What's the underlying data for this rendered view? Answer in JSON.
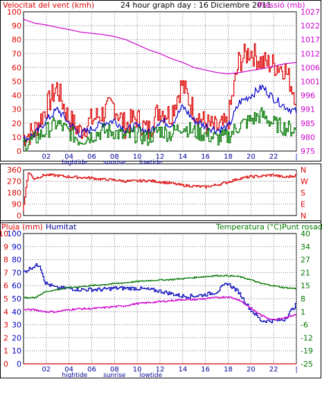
{
  "header": {
    "left_title": "Velocitat del vent (kmh)",
    "center_title": "24 hour graph day : 16 Diciembre 2011",
    "right_title": "Pressió (mb)"
  },
  "colors": {
    "wind": "#dd0000",
    "gust": "#0000cc",
    "avg": "#007700",
    "pressure": "#cc00cc",
    "humidity": "#0000bb",
    "temperature": "#007700",
    "dewpoint": "#cc00cc",
    "rain": "#dd0000",
    "axis_blue": "#000099"
  },
  "x_ticks": [
    "02",
    "04",
    "06",
    "08",
    "10",
    "12",
    "14",
    "16",
    "18",
    "20",
    "22",
    "|"
  ],
  "x_annotations": {
    "hightide": "hightide",
    "sunrise": "sunrise",
    "lowtide": "lowtide"
  },
  "chart_data": [
    {
      "type": "line",
      "title": "24 hour graph day : 16 Diciembre 2011",
      "left_axis": {
        "label": "Velocitat del vent (kmh)",
        "ticks": [
          0,
          10,
          20,
          30,
          40,
          50,
          60,
          70,
          80,
          90,
          100
        ],
        "range": [
          0,
          100
        ]
      },
      "right_axis": {
        "label": "Pressió (mb)",
        "ticks": [
          975,
          980,
          985,
          991,
          996,
          1001,
          1006,
          1012,
          1017,
          1022,
          1027
        ],
        "range": [
          975,
          1030
        ]
      },
      "x": {
        "range": [
          0,
          24
        ],
        "ticks": [
          2,
          4,
          6,
          8,
          10,
          12,
          14,
          16,
          18,
          20,
          22,
          24
        ],
        "tick_labels": [
          "02",
          "04",
          "06",
          "08",
          "10",
          "12",
          "14",
          "16",
          "18",
          "20",
          "22",
          "|"
        ]
      },
      "series": [
        {
          "role": "wind_gust",
          "axis": "left",
          "x": [
            0,
            1,
            2,
            3,
            4,
            5,
            6,
            7,
            8,
            9,
            10,
            11,
            12,
            13,
            14,
            15,
            16,
            17,
            18,
            19,
            20,
            21,
            22,
            23,
            24
          ],
          "values": [
            10,
            14,
            30,
            46,
            24,
            14,
            22,
            27,
            33,
            18,
            24,
            14,
            30,
            26,
            48,
            30,
            20,
            16,
            19,
            64,
            72,
            64,
            62,
            60,
            40
          ]
        },
        {
          "role": "wind_speed",
          "axis": "left",
          "x": [
            0,
            1,
            2,
            3,
            4,
            5,
            6,
            7,
            8,
            9,
            10,
            11,
            12,
            13,
            14,
            15,
            16,
            17,
            18,
            19,
            20,
            21,
            22,
            23,
            24
          ],
          "values": [
            8,
            12,
            22,
            30,
            20,
            12,
            16,
            20,
            22,
            15,
            18,
            13,
            22,
            19,
            32,
            22,
            18,
            15,
            17,
            35,
            40,
            46,
            38,
            32,
            28
          ]
        },
        {
          "role": "wind_avg",
          "axis": "left",
          "x": [
            0,
            1,
            2,
            3,
            4,
            5,
            6,
            7,
            8,
            9,
            10,
            11,
            12,
            13,
            14,
            15,
            16,
            17,
            18,
            19,
            20,
            21,
            22,
            23,
            24
          ],
          "values": [
            5,
            8,
            14,
            20,
            14,
            8,
            11,
            14,
            14,
            10,
            12,
            9,
            15,
            12,
            18,
            14,
            12,
            9,
            10,
            18,
            22,
            26,
            20,
            17,
            15
          ]
        },
        {
          "role": "pressure",
          "axis": "right",
          "x": [
            0,
            1,
            2,
            3,
            4,
            5,
            6,
            7,
            8,
            9,
            10,
            11,
            12,
            13,
            14,
            15,
            16,
            17,
            18,
            19,
            20,
            21,
            22,
            23,
            24
          ],
          "values": [
            1027,
            1025.5,
            1024.8,
            1023.8,
            1023,
            1022,
            1021.5,
            1021,
            1020.2,
            1019,
            1017,
            1015,
            1013.5,
            1011.5,
            1010,
            1008,
            1007,
            1006,
            1005.5,
            1006,
            1006.8,
            1007.5,
            1008.5,
            1009.5,
            1010
          ]
        }
      ]
    },
    {
      "type": "line",
      "left_axis": {
        "ticks": [
          0,
          90,
          180,
          270,
          360
        ],
        "range": [
          0,
          360
        ]
      },
      "right_axis": {
        "ticks": [
          "N",
          "W",
          "S",
          "E",
          "N"
        ]
      },
      "x": {
        "range": [
          0,
          24
        ]
      },
      "series": [
        {
          "role": "wind_direction",
          "axis": "left",
          "x": [
            0,
            0.5,
            1,
            2,
            3,
            4,
            5,
            6,
            7,
            8,
            9,
            10,
            11,
            12,
            13,
            14,
            15,
            16,
            17,
            18,
            19,
            20,
            21,
            22,
            23,
            24
          ],
          "values": [
            30,
            340,
            290,
            320,
            315,
            305,
            300,
            295,
            285,
            280,
            270,
            272,
            275,
            265,
            255,
            238,
            232,
            225,
            240,
            262,
            290,
            305,
            310,
            320,
            300,
            315
          ]
        }
      ]
    },
    {
      "type": "line",
      "left_axis": {
        "label": "Pluja (mm)",
        "ticks": [
          0,
          1,
          2,
          3,
          4,
          5,
          6,
          7,
          8,
          9,
          10
        ],
        "range": [
          0,
          10
        ]
      },
      "left_axis_2": {
        "label": "Humitat",
        "ticks": [
          0,
          10,
          20,
          30,
          40,
          50,
          60,
          70,
          80,
          90,
          100
        ],
        "range": [
          0,
          100
        ]
      },
      "right_axis": {
        "label": "Temperatura (°C)Punt rosada",
        "ticks": [
          -25,
          -19,
          -12,
          -6,
          1,
          8,
          15,
          21,
          27,
          34,
          40
        ],
        "range": [
          -25,
          40
        ]
      },
      "x": {
        "range": [
          0,
          24
        ]
      },
      "series": [
        {
          "role": "humidity",
          "axis": "left_2",
          "x": [
            0,
            1,
            1.5,
            2,
            3,
            4,
            5,
            6,
            7,
            8,
            9,
            10,
            11,
            12,
            13,
            14,
            15,
            16,
            17,
            18,
            19,
            20,
            21,
            22,
            23,
            24
          ],
          "values": [
            70,
            75,
            76,
            62,
            58,
            58,
            57,
            57,
            57,
            58,
            58,
            58,
            57,
            56,
            54,
            52,
            52,
            53,
            55,
            62,
            55,
            42,
            33,
            33,
            34,
            45
          ]
        },
        {
          "role": "temperature",
          "axis": "right",
          "x": [
            0,
            1,
            2,
            3,
            4,
            5,
            6,
            7,
            8,
            9,
            10,
            11,
            12,
            13,
            14,
            15,
            16,
            17,
            18,
            19,
            20,
            21,
            22,
            23,
            24
          ],
          "values": [
            8,
            8,
            11,
            12,
            13,
            13.5,
            14,
            14.5,
            15,
            15.5,
            16,
            16.5,
            16.8,
            17,
            17.5,
            18,
            18.5,
            19,
            19,
            18.5,
            17,
            15,
            14,
            13,
            12.5
          ]
        },
        {
          "role": "dewpoint",
          "axis": "right",
          "x": [
            0,
            1,
            2,
            3,
            4,
            5,
            6,
            7,
            8,
            9,
            10,
            11,
            12,
            13,
            14,
            15,
            16,
            17,
            18,
            19,
            20,
            21,
            22,
            23,
            24
          ],
          "values": [
            2,
            2,
            1,
            1,
            2,
            2.5,
            2.5,
            3,
            3.5,
            4,
            5,
            5.5,
            6,
            6.5,
            7,
            7,
            7.5,
            8,
            8.5,
            7,
            3,
            -1,
            -3,
            -2,
            -0.5
          ]
        },
        {
          "role": "rain",
          "axis": "left",
          "x": [
            0,
            24
          ],
          "values": [
            0,
            0
          ]
        }
      ]
    }
  ],
  "panel2": {
    "left_ticks": [
      "360",
      "270",
      "180",
      "90",
      "0"
    ],
    "right_ticks": [
      "N",
      "W",
      "S",
      "E",
      "N"
    ]
  },
  "panel3": {
    "legend_rain": "Pluja (mm)",
    "legend_humidity": "Humitat",
    "legend_temp": "Temperatura (°C)Punt rosada",
    "left_ticks_rain": [
      "10",
      "9",
      "8",
      "7",
      "6",
      "5",
      "4",
      "3",
      "2",
      "1",
      "0"
    ],
    "left_ticks_hum": [
      "100",
      "90",
      "80",
      "70",
      "60",
      "50",
      "40",
      "30",
      "20",
      "10",
      "0"
    ],
    "right_ticks": [
      "40",
      "34",
      "27",
      "21",
      "15",
      "8",
      "1",
      "-6",
      "-12",
      "-19",
      "-25"
    ]
  },
  "panel1": {
    "left_ticks": [
      "100",
      "90",
      "80",
      "70",
      "60",
      "50",
      "40",
      "30",
      "20",
      "10",
      "0"
    ],
    "right_ticks": [
      "1027",
      "1022",
      "1017",
      "1012",
      "1006",
      "1001",
      "996",
      "991",
      "985",
      "980",
      "975"
    ]
  }
}
